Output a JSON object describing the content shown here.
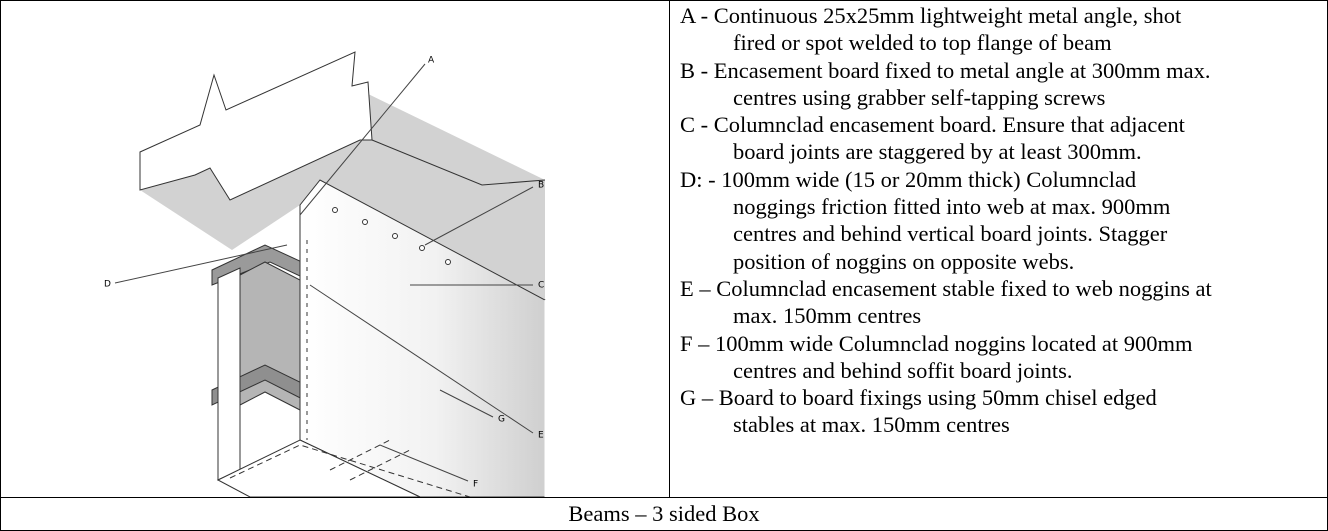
{
  "drawing_labels": [
    "A",
    "B",
    "C",
    "D",
    "E",
    "F",
    "G"
  ],
  "notes": [
    {
      "lines": [
        "A - Continuous 25x25mm lightweight metal angle, shot",
        "fired or spot welded to top flange of beam"
      ]
    },
    {
      "lines": [
        "B - Encasement board fixed to metal angle at 300mm max.",
        "centres using grabber self-tapping screws"
      ]
    },
    {
      "lines": [
        "C - Columnclad encasement board.  Ensure that adjacent",
        "board joints are staggered by at least 300mm."
      ]
    },
    {
      "lines": [
        "D: - 100mm wide (15 or 20mm thick) Columnclad",
        "noggings friction fitted into web at max. 900mm",
        "centres and behind vertical board joints.  Stagger",
        "position of noggins on opposite webs."
      ]
    },
    {
      "lines": [
        "E – Columnclad encasement stable fixed to web noggins at",
        "max. 150mm centres"
      ]
    },
    {
      "lines": [
        "F – 100mm wide Columnclad noggins located at 900mm",
        "centres and behind soffit board joints."
      ]
    },
    {
      "lines": [
        "G – Board to board fixings using 50mm chisel edged",
        "stables at max. 150mm centres"
      ]
    }
  ],
  "caption": "Beams – 3 sided Box"
}
